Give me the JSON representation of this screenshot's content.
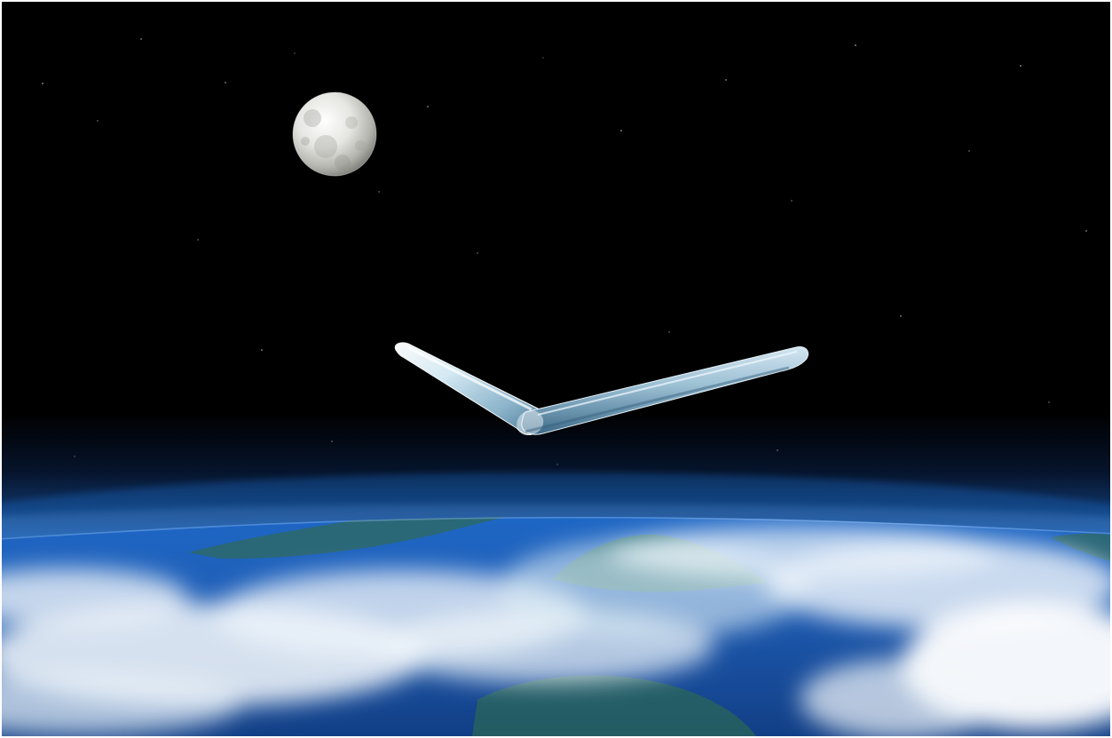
{
  "scene": {
    "type": "space-render",
    "subjects": [
      "moon",
      "v-shaped-flying-wing",
      "earth-horizon-with-clouds"
    ],
    "colors": {
      "space": "#000000",
      "star": "#ffffff",
      "atmosphere_glow": "#1b5aa8",
      "ocean": "#1f5fb8",
      "ocean_deep": "#123f86",
      "cloud": "#f3f7fb",
      "land": "#2f6a5c",
      "moon_light": "#f2f2ef",
      "moon_shadow": "#8c8c88",
      "wing_highlight": "#ffffff",
      "wing_mid": "#9fc4d8",
      "wing_shadow": "#4f7d98"
    }
  }
}
